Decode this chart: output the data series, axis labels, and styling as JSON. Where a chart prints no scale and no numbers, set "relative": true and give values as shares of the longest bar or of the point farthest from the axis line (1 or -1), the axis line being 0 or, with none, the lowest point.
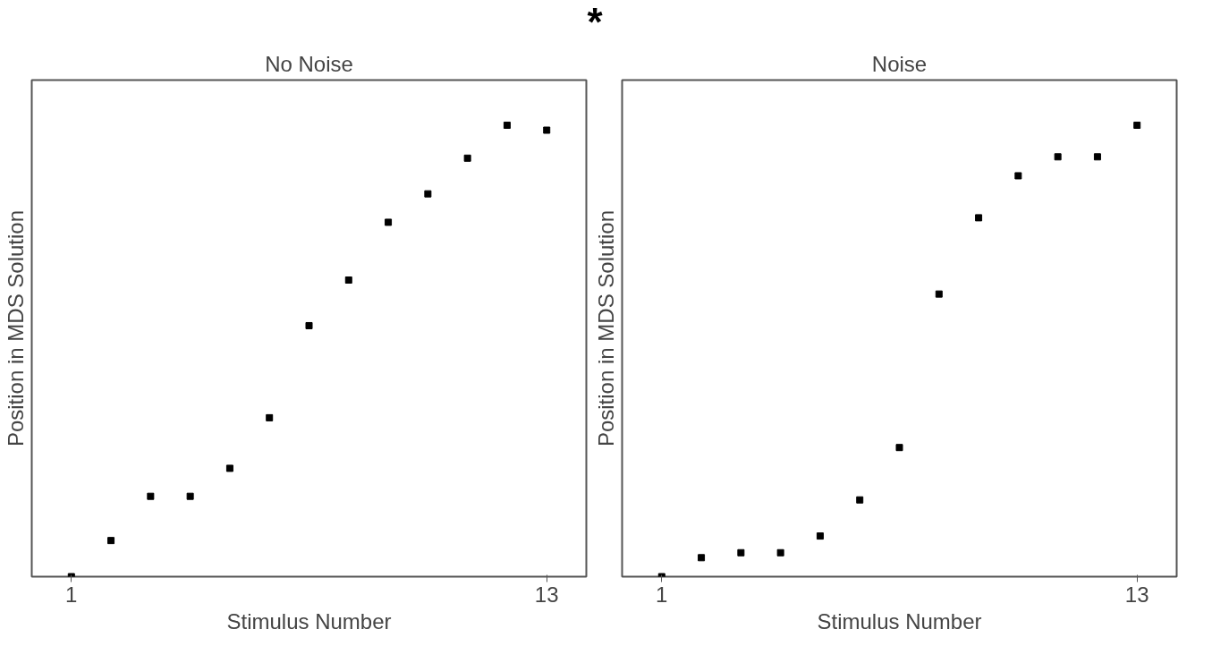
{
  "chart_data": [
    {
      "type": "scatter",
      "title": "No Noise",
      "xlabel": "Stimulus Number",
      "ylabel": "Position in MDS Solution",
      "relative": true,
      "x": [
        1,
        2,
        3,
        4,
        5,
        6,
        7,
        8,
        9,
        10,
        11,
        12,
        13
      ],
      "values": [
        0,
        0.08,
        0.178,
        0.178,
        0.24,
        0.352,
        0.556,
        0.657,
        0.785,
        0.848,
        0.927,
        1.0,
        0.989
      ],
      "color": "#000000",
      "marker": "square",
      "xlim": [
        0,
        14
      ],
      "xticks": [
        1,
        13
      ],
      "tick_labels": "x",
      "grid": false
    },
    {
      "type": "scatter",
      "title": "Noise",
      "xlabel": "Stimulus Number",
      "ylabel": "Position in MDS Solution",
      "relative": true,
      "x": [
        1,
        2,
        3,
        4,
        5,
        6,
        7,
        8,
        9,
        10,
        11,
        12,
        13
      ],
      "values": [
        0,
        0.042,
        0.053,
        0.053,
        0.09,
        0.17,
        0.286,
        0.626,
        0.795,
        0.888,
        0.93,
        0.93,
        1.0
      ],
      "color": "#000000",
      "marker": "square",
      "xlim": [
        0,
        14
      ],
      "xticks": [
        1,
        13
      ],
      "tick_labels": "x",
      "grid": false,
      "annotations": [
        "*"
      ]
    }
  ]
}
